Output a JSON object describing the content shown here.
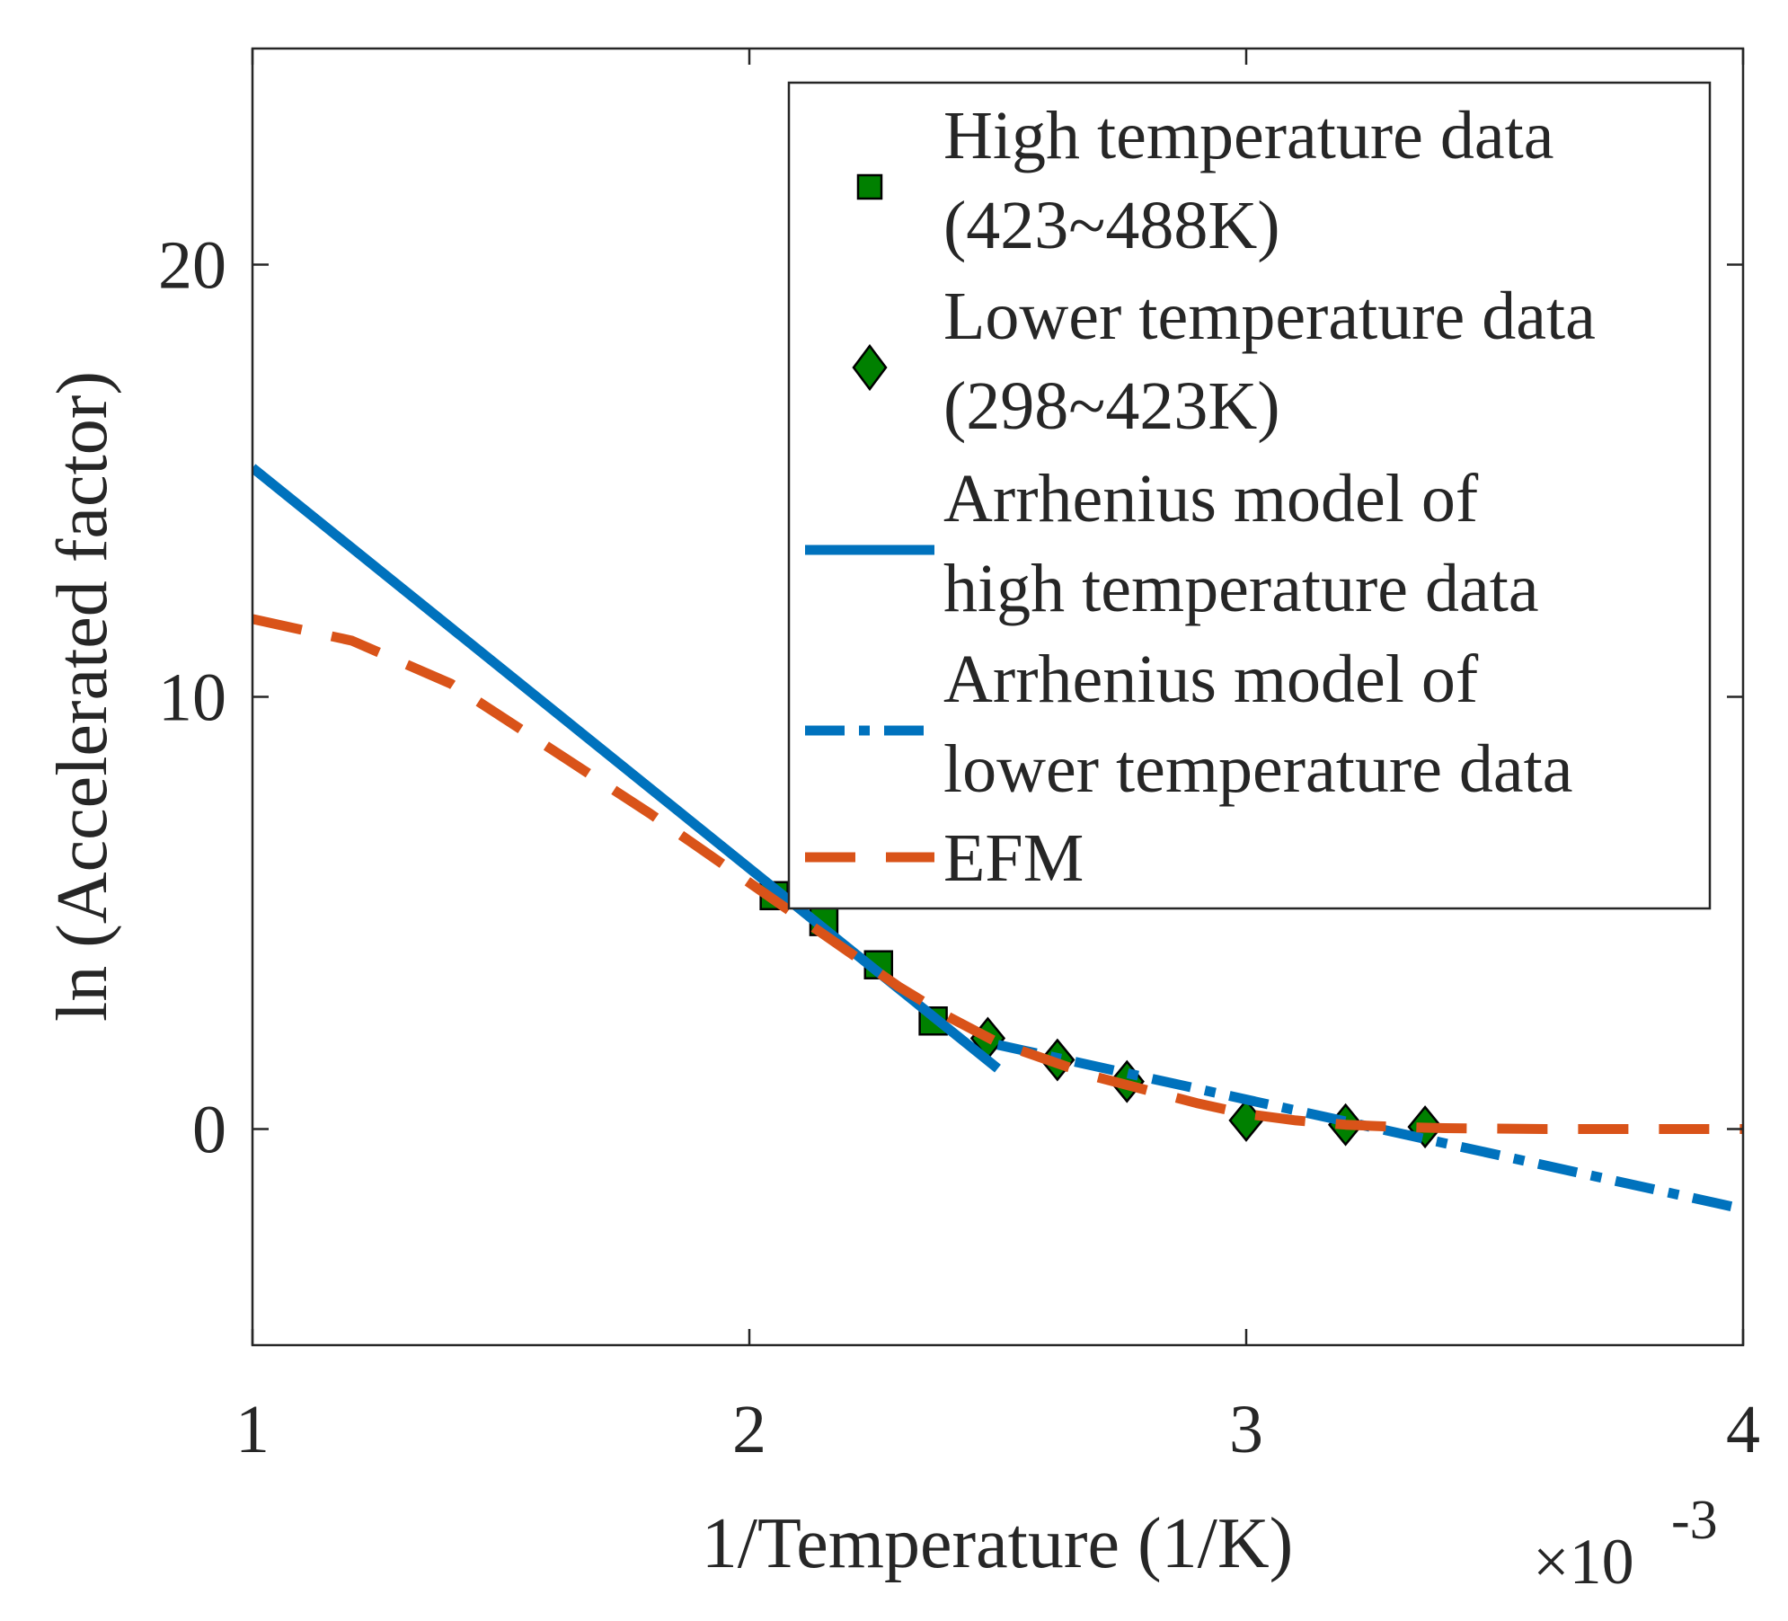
{
  "colors": {
    "high_data_fill": "#008000",
    "marker_edge": "#000000",
    "arrhenius": "#0072BD",
    "efm": "#D95319",
    "axis": "#262626"
  },
  "chart_data": {
    "type": "line",
    "xlabel": "1/Temperature (1/K)",
    "ylabel": "ln (Accelerated factor)",
    "x_exponent_label": "×10",
    "x_exponent_power": "-3",
    "xlim": [
      1,
      4
    ],
    "ylim": [
      -5,
      25
    ],
    "x_ticks": [
      1,
      2,
      3,
      4
    ],
    "x_tick_labels": [
      "1",
      "2",
      "3",
      "4"
    ],
    "y_ticks": [
      0,
      10,
      20
    ],
    "y_tick_labels": [
      "0",
      "10",
      "20"
    ],
    "grid": false,
    "legend_position": "top-right",
    "series": [
      {
        "name": "High temperature data (423~488K)",
        "legend_lines": [
          "High temperature data",
          "(423~488K)"
        ],
        "kind": "scatter",
        "marker": "square",
        "x": [
          2.05,
          2.15,
          2.26,
          2.37
        ],
        "y": [
          5.4,
          4.8,
          3.8,
          2.5
        ]
      },
      {
        "name": "Lower temperature data (298~423K)",
        "legend_lines": [
          "Lower temperature data",
          "(298~423K)"
        ],
        "kind": "scatter",
        "marker": "diamond",
        "x": [
          2.48,
          2.62,
          2.76,
          3.0,
          3.2,
          3.36
        ],
        "y": [
          2.1,
          1.6,
          1.1,
          0.2,
          0.1,
          0.05
        ]
      },
      {
        "name": "Arrhenius model of high temperature data",
        "legend_lines": [
          "Arrhenius model of",
          "high temperature data"
        ],
        "kind": "line",
        "style": "solid",
        "x": [
          1.0,
          2.5
        ],
        "y": [
          15.3,
          1.4
        ]
      },
      {
        "name": "Arrhenius model of lower temperature data",
        "legend_lines": [
          "Arrhenius model of",
          " lower temperature data"
        ],
        "kind": "line",
        "style": "dashdot",
        "x": [
          2.5,
          4.0
        ],
        "y": [
          1.95,
          -1.85
        ]
      },
      {
        "name": "EFM",
        "legend_lines": [
          "EFM"
        ],
        "kind": "line",
        "style": "dashed",
        "x": [
          1.0,
          1.2,
          1.4,
          1.6,
          1.8,
          2.0,
          2.1,
          2.2,
          2.3,
          2.4,
          2.5,
          2.6,
          2.7,
          2.8,
          2.9,
          3.0,
          3.1,
          3.2,
          3.3,
          3.4,
          3.6,
          3.8,
          4.0
        ],
        "y": [
          11.8,
          11.3,
          10.3,
          8.8,
          7.3,
          5.7,
          4.9,
          4.1,
          3.3,
          2.6,
          2.0,
          1.6,
          1.2,
          0.9,
          0.6,
          0.35,
          0.2,
          0.1,
          0.05,
          0.02,
          0.0,
          0.0,
          0.0
        ]
      }
    ]
  }
}
